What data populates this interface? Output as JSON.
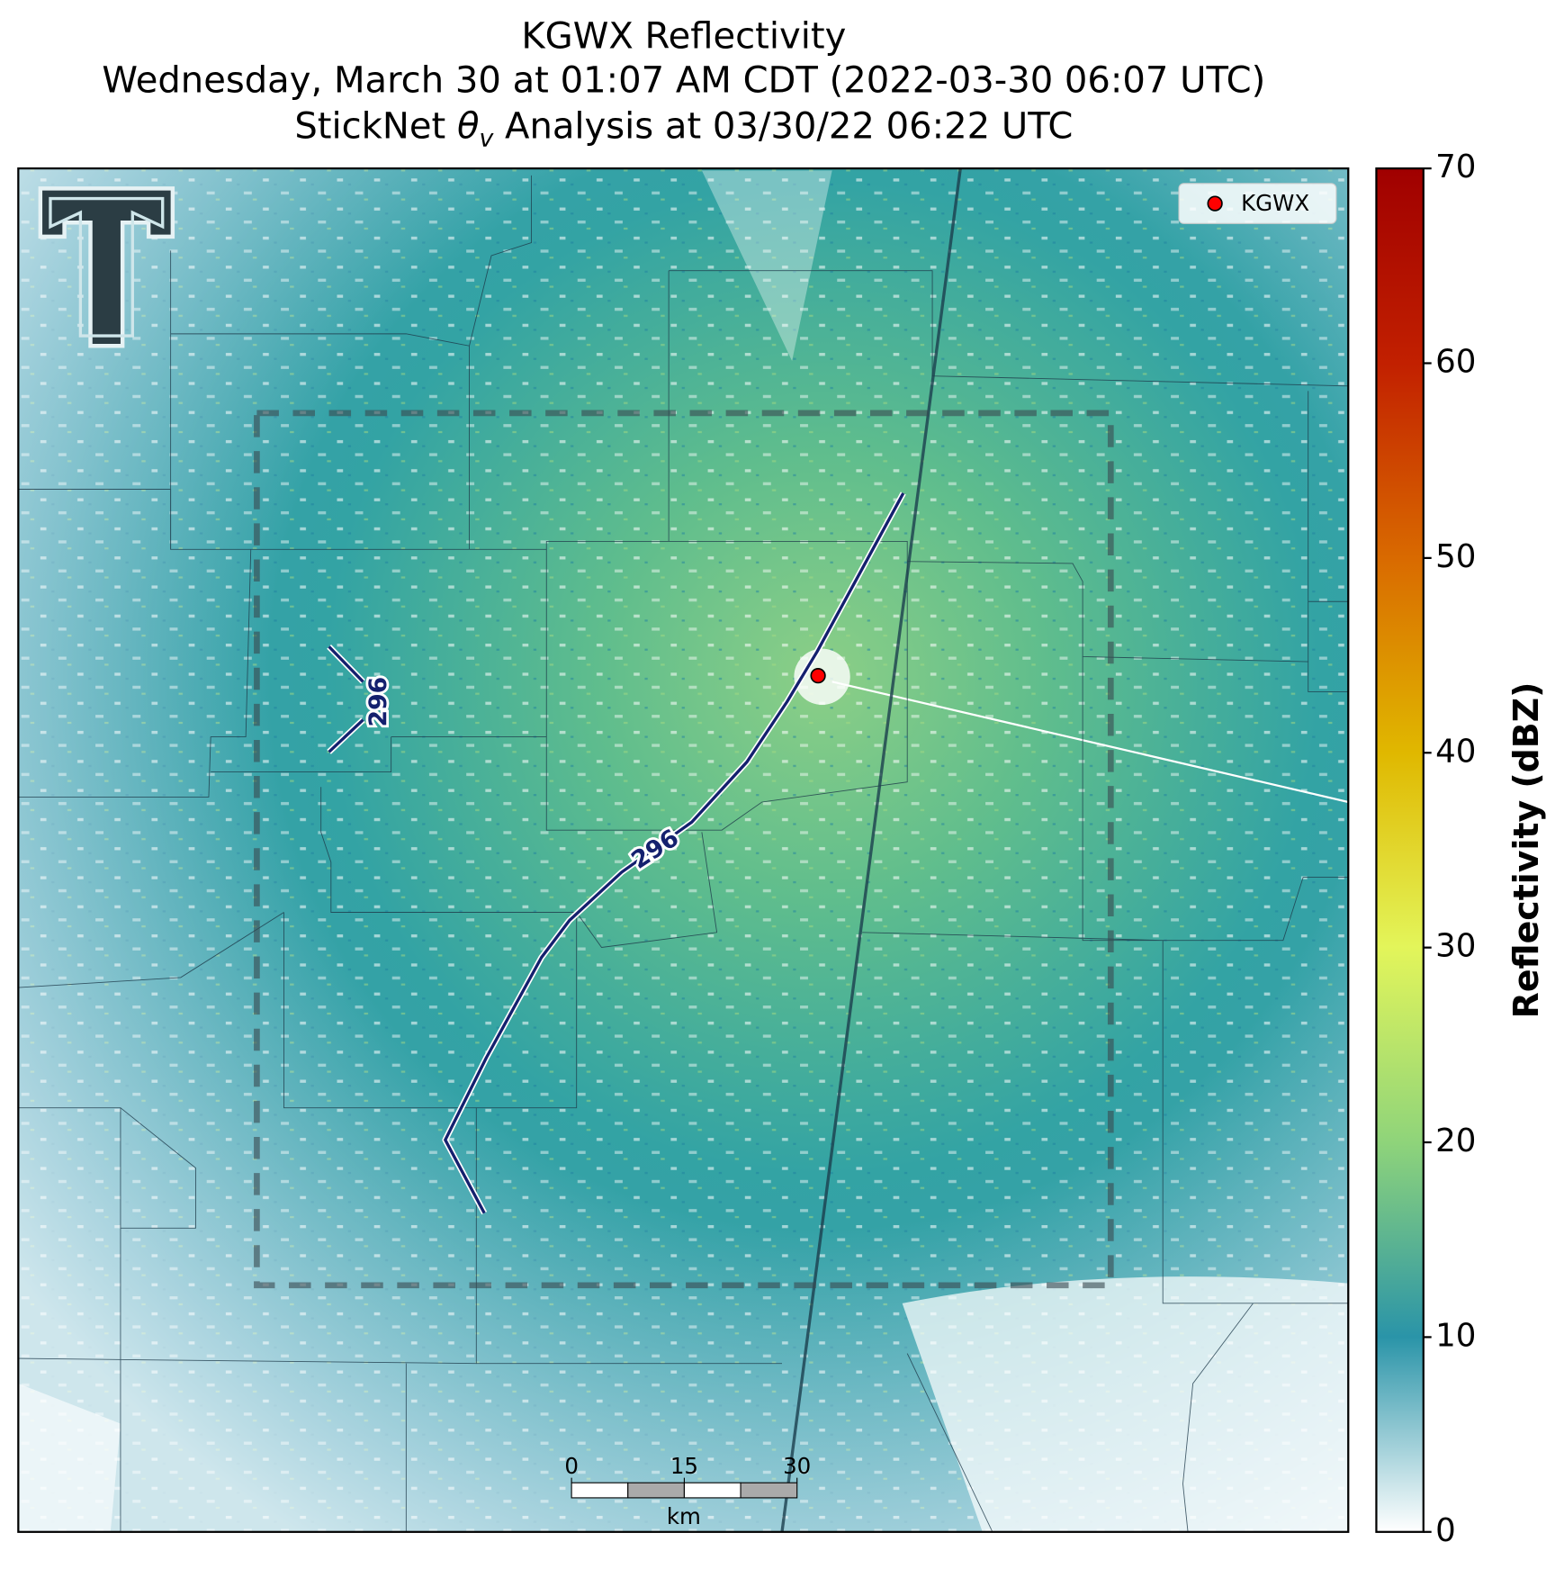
{
  "title": {
    "line1": "KGWX Reflectivity",
    "line2": "Wednesday, March 30 at 01:07 AM CDT (2022-03-30 06:07 UTC)",
    "line3": {
      "prefix": "StickNet ",
      "symbol": "θ",
      "subscript": "v",
      "suffix": " Analysis at 03/30/22 06:22 UTC"
    }
  },
  "legend": {
    "label": "KGWX",
    "color": "#ff0000"
  },
  "contour_labels": [
    "296",
    "296"
  ],
  "colorbar": {
    "label": "Reflectivity (dBZ)",
    "lim": [
      0,
      70
    ],
    "ticks": [
      0,
      10,
      20,
      30,
      40,
      50,
      60,
      70
    ]
  },
  "scale_bar": {
    "ticks": [
      0,
      15,
      30
    ],
    "unit": "km"
  }
}
